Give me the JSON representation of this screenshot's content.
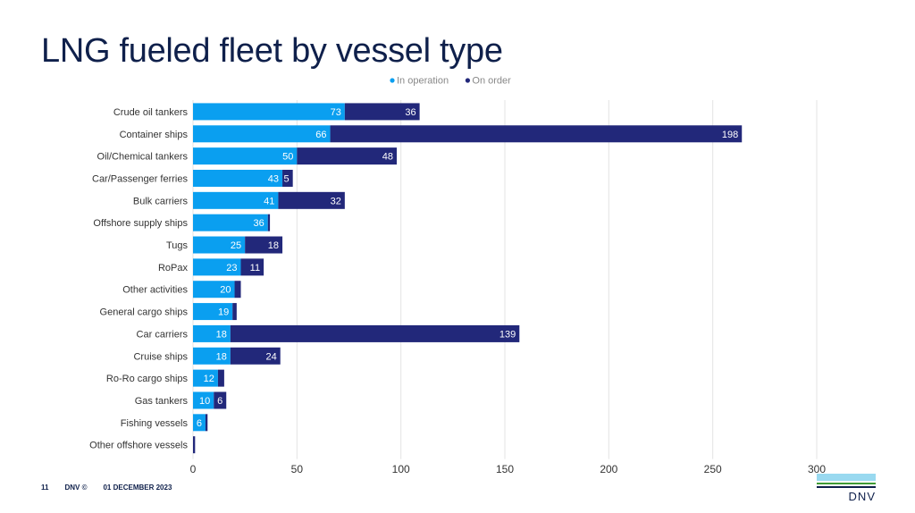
{
  "slide": {
    "title": "LNG fueled fleet by vessel type",
    "page_number": "11",
    "company": "DNV ©",
    "date": "01 DECEMBER 2023",
    "logo_text": "DNV"
  },
  "colors": {
    "in_operation": "#0a9ff0",
    "on_order": "#22287a",
    "title": "#0f204b",
    "grid": "#e3e3e3",
    "axis_text": "#333333",
    "label_text": "#555555"
  },
  "chart_data": {
    "type": "bar",
    "orientation": "horizontal",
    "stacked": true,
    "title": "",
    "xlabel": "",
    "ylabel": "",
    "xlim": [
      0,
      300
    ],
    "xticks": [
      0,
      50,
      100,
      150,
      200,
      250,
      300
    ],
    "grid": true,
    "legend_position": "top",
    "categories": [
      "Crude oil tankers",
      "Container ships",
      "Oil/Chemical tankers",
      "Car/Passenger ferries",
      "Bulk carriers",
      "Offshore supply ships",
      "Tugs",
      "RoPax",
      "Other activities",
      "General cargo ships",
      "Car carriers",
      "Cruise ships",
      "Ro-Ro cargo ships",
      "Gas tankers",
      "Fishing vessels",
      "Other offshore vessels"
    ],
    "series": [
      {
        "name": "In operation",
        "values": [
          73,
          66,
          50,
          43,
          41,
          36,
          25,
          23,
          20,
          19,
          18,
          18,
          12,
          10,
          6,
          0
        ],
        "labels": [
          "73",
          "66",
          "50",
          "43",
          "41",
          "36",
          "25",
          "23",
          "20",
          "19",
          "18",
          "18",
          "12",
          "10",
          "6",
          ""
        ]
      },
      {
        "name": "On order",
        "values": [
          36,
          198,
          48,
          5,
          32,
          1,
          18,
          11,
          3,
          2,
          139,
          24,
          3,
          6,
          1,
          1
        ],
        "labels": [
          "36",
          "198",
          "48",
          "5",
          "32",
          "",
          "18",
          "11",
          "",
          "",
          "139",
          "24",
          "",
          "6",
          "",
          ""
        ]
      }
    ]
  }
}
